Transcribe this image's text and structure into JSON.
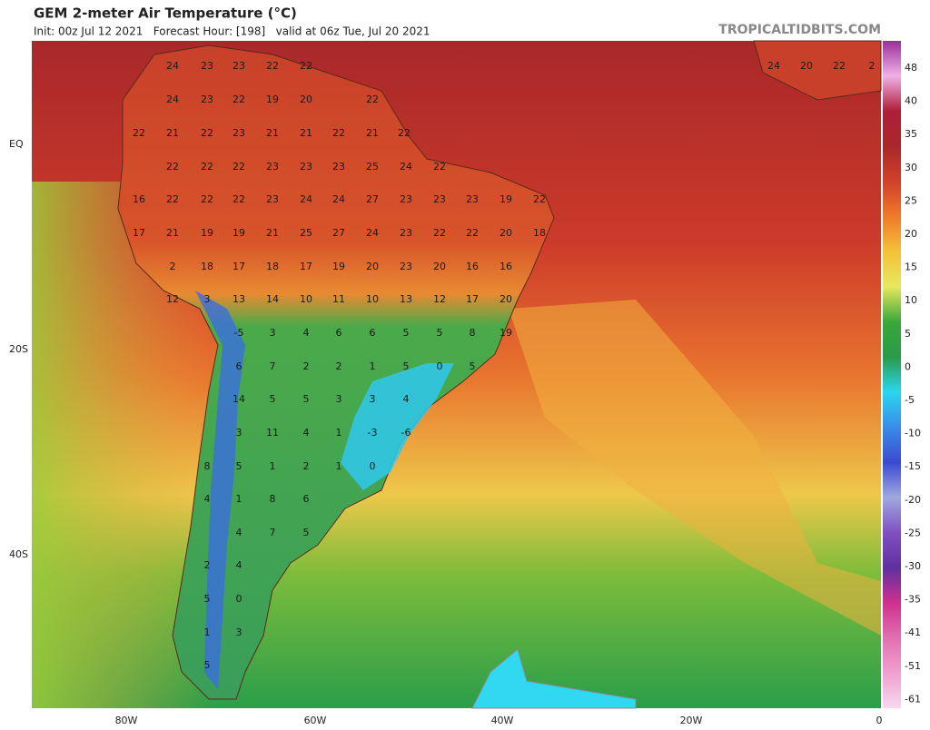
{
  "header": {
    "title": "GEM 2-meter Air Temperature (°C)",
    "subtitle": "Init: 00z Jul 12 2021   Forecast Hour: [198]   valid at 06z Tue, Jul 20 2021",
    "site": "TROPICALTIDBITS.COM"
  },
  "lat_labels": [
    "EQ",
    "20S",
    "40S"
  ],
  "lon_labels": [
    "80W",
    "60W",
    "40W",
    "20W",
    "0"
  ],
  "colorbar": {
    "labels": [
      48,
      40,
      35,
      30,
      25,
      20,
      15,
      10,
      5,
      0,
      -5,
      -10,
      -15,
      -20,
      -25,
      -30,
      -35,
      -41,
      -51,
      -61
    ],
    "colors": [
      "#9a2f9a",
      "#f0b0e8",
      "#b01e3a",
      "#a8282a",
      "#d2402a",
      "#ee7a2a",
      "#f4c23a",
      "#e8e860",
      "#3aa83a",
      "#2a9a4a",
      "#2ad6f0",
      "#3a8ce8",
      "#3a4ad0",
      "#a0a8e0",
      "#8050c0",
      "#6030a0",
      "#d03090",
      "#e070b0",
      "#f0a0d0",
      "#f8d8f0"
    ]
  },
  "map_labels": [
    [
      24,
      23,
      23,
      22,
      22,
      24,
      20,
      22,
      2
    ],
    [
      24,
      23,
      22,
      19,
      20,
      22
    ],
    [
      22,
      21,
      22,
      23,
      21,
      21,
      22,
      21,
      22
    ],
    [
      22,
      22,
      22,
      23,
      23,
      23,
      25,
      24,
      22
    ],
    [
      16,
      22,
      22,
      22,
      23,
      24,
      24,
      27,
      23,
      23,
      23,
      19,
      22
    ],
    [
      17,
      21,
      19,
      19,
      21,
      25,
      27,
      24,
      23,
      22,
      22,
      20,
      18
    ],
    [
      2,
      18,
      17,
      18,
      17,
      19,
      20,
      23,
      20,
      16,
      16
    ],
    [
      12,
      3,
      13,
      14,
      10,
      11,
      10,
      13,
      12,
      17,
      20
    ],
    [
      -5,
      3,
      4,
      6,
      6,
      5,
      5,
      8,
      19
    ],
    [
      6,
      7,
      2,
      2,
      1,
      5,
      0,
      5
    ],
    [
      14,
      5,
      5,
      3,
      3,
      4
    ],
    [
      3,
      11,
      4,
      1,
      -3,
      -6
    ],
    [
      8,
      5,
      1,
      2,
      1,
      0
    ],
    [
      4,
      1,
      8,
      6
    ],
    [
      4,
      7,
      5
    ],
    [
      2,
      4
    ],
    [
      5,
      0
    ],
    [
      1,
      3
    ],
    [
      5
    ]
  ]
}
